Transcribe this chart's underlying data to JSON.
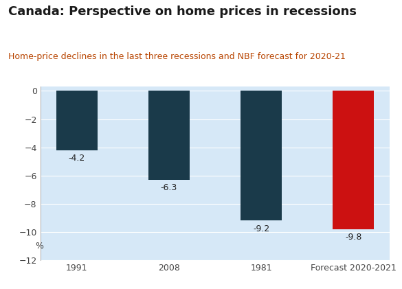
{
  "title": "Canada: Perspective on home prices in recessions",
  "subtitle": "Home-price declines in the last three recessions and NBF forecast for 2020-21",
  "categories": [
    "1991",
    "2008",
    "1981",
    "Forecast 2020-2021"
  ],
  "values": [
    -4.2,
    -6.3,
    -9.2,
    -9.8
  ],
  "bar_colors": [
    "#1a3a4a",
    "#1a3a4a",
    "#1a3a4a",
    "#cc1111"
  ],
  "bar_labels": [
    "-4.2",
    "-6.3",
    "-9.2",
    "-9.8"
  ],
  "ylabel_text": "%",
  "ylim": [
    -12,
    0.3
  ],
  "yticks": [
    0,
    -2,
    -4,
    -6,
    -8,
    -10,
    -12
  ],
  "figure_bg_color": "#ffffff",
  "plot_bg_color": "#d6e8f7",
  "title_color": "#1a1a1a",
  "subtitle_color": "#b84400",
  "label_color": "#222222",
  "grid_color": "#ffffff",
  "tick_color": "#444444",
  "title_fontsize": 13,
  "subtitle_fontsize": 9,
  "label_fontsize": 9,
  "tick_fontsize": 9,
  "bar_width": 0.45
}
